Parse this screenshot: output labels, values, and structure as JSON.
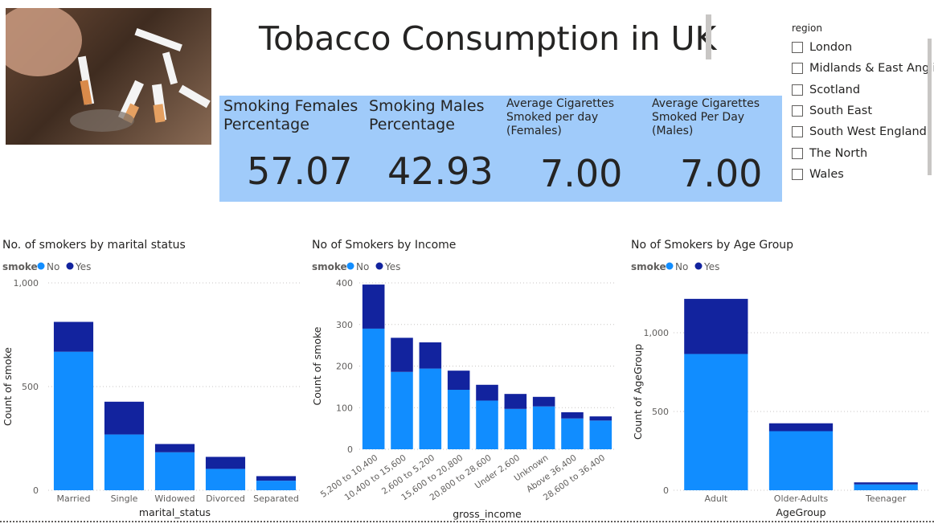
{
  "header": {
    "title": "Tobacco Consumption in UK"
  },
  "kpis": [
    {
      "label": "Smoking Females Percentage",
      "value": "57.07"
    },
    {
      "label": "Smoking Males Percentage",
      "value": "42.93"
    },
    {
      "label": "Average Cigarettes Smoked per day (Females)",
      "value": "7.00"
    },
    {
      "label": "Average Cigarettes Smoked Per Day (Males)",
      "value": "7.00"
    }
  ],
  "slicer": {
    "title": "region",
    "items": [
      "London",
      "Midlands & East Anglia",
      "Scotland",
      "South East",
      "South West England",
      "The North",
      "Wales"
    ]
  },
  "colors": {
    "no": "#118dff",
    "yes": "#12239e",
    "kpi_bg": "#a0cbfa"
  },
  "chart_data": [
    {
      "type": "bar",
      "stacked": true,
      "title": "No. of smokers by marital status",
      "legend_title": "smoke",
      "xlabel": "marital_status",
      "ylabel": "Count of smoke",
      "categories": [
        "Married",
        "Single",
        "Widowed",
        "Divorced",
        "Separated"
      ],
      "series": [
        {
          "name": "No",
          "values": [
            668,
            269,
            183,
            103,
            46
          ]
        },
        {
          "name": "Yes",
          "values": [
            144,
            158,
            40,
            58,
            22
          ]
        }
      ],
      "ylim": [
        0,
        1000
      ],
      "yticks": [
        0,
        500,
        1000
      ],
      "ytick_labels": [
        "0",
        "500",
        "1,000"
      ]
    },
    {
      "type": "bar",
      "stacked": true,
      "title": "No of Smokers by Income",
      "legend_title": "smoke",
      "xlabel": "gross_income",
      "ylabel": "Count of smoke",
      "categories": [
        "5,200 to 10,400",
        "10,400 to 15,600",
        "2,600 to 5,200",
        "15,600 to 20,800",
        "20,800 to 28,600",
        "Under 2,600",
        "Unknown",
        "Above 36,400",
        "28,600 to 36,400"
      ],
      "series": [
        {
          "name": "No",
          "values": [
            290,
            186,
            194,
            143,
            117,
            97,
            103,
            74,
            69
          ]
        },
        {
          "name": "Yes",
          "values": [
            106,
            82,
            63,
            46,
            38,
            36,
            23,
            15,
            10
          ]
        }
      ],
      "ylim": [
        0,
        400
      ],
      "yticks": [
        0,
        100,
        200,
        300,
        400
      ],
      "ytick_labels": [
        "0",
        "100",
        "200",
        "300",
        "400"
      ]
    },
    {
      "type": "bar",
      "stacked": true,
      "title": "No of Smokers by Age Group",
      "legend_title": "smoke",
      "xlabel": "AgeGroup",
      "ylabel": "Count of AgeGroup",
      "categories": [
        "Adult",
        "Older-Adults",
        "Teenager"
      ],
      "series": [
        {
          "name": "No",
          "values": [
            865,
            375,
            37
          ]
        },
        {
          "name": "Yes",
          "values": [
            350,
            50,
            13
          ]
        }
      ],
      "ylim": [
        0,
        1250
      ],
      "yticks": [
        0,
        500,
        1000
      ],
      "ytick_labels": [
        "0",
        "500",
        "1,000"
      ]
    }
  ]
}
